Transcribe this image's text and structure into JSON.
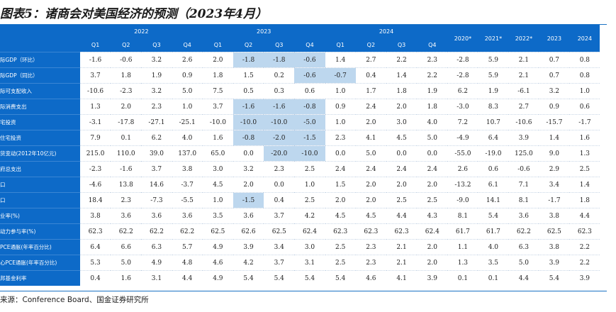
{
  "title": "图表5：诸商会对美国经济的预测（2023年4月）",
  "header": {
    "years": [
      {
        "label": "2022",
        "span": 4
      },
      {
        "label": "2023",
        "span": 4
      },
      {
        "label": "2024",
        "span": 4
      }
    ],
    "quarters": [
      "Q1",
      "Q2",
      "Q3",
      "Q4",
      "Q1",
      "Q2",
      "Q3",
      "Q4",
      "Q1",
      "Q2",
      "Q3",
      "Q4"
    ],
    "annual": [
      "2020*",
      "2021*",
      "2022*",
      "2023",
      "2024"
    ]
  },
  "rows": [
    {
      "label": "际GDP（环比）",
      "values": [
        "-1.6",
        "-0.6",
        "3.2",
        "2.6",
        "2.0",
        "-1.8",
        "-1.8",
        "-0.6",
        "1.4",
        "2.7",
        "2.2",
        "2.3",
        "-2.8",
        "5.9",
        "2.1",
        "0.7",
        "0.8"
      ],
      "highlight": [
        5,
        6,
        7
      ]
    },
    {
      "label": "际GDP（同比）",
      "values": [
        "3.7",
        "1.8",
        "1.9",
        "0.9",
        "1.8",
        "1.5",
        "0.2",
        "-0.6",
        "-0.7",
        "0.4",
        "1.4",
        "2.2",
        "-2.8",
        "5.9",
        "2.1",
        "0.7",
        "0.8"
      ],
      "highlight": [
        7,
        8
      ]
    },
    {
      "label": "际可支配收入",
      "values": [
        "-10.6",
        "-2.3",
        "3.2",
        "5.0",
        "7.5",
        "0.5",
        "0.3",
        "0.6",
        "1.0",
        "1.7",
        "1.8",
        "1.9",
        "6.2",
        "1.9",
        "-6.1",
        "3.2",
        "1.0"
      ],
      "highlight": []
    },
    {
      "label": "际消费支出",
      "values": [
        "1.3",
        "2.0",
        "2.3",
        "1.0",
        "3.7",
        "-1.6",
        "-1.6",
        "-0.8",
        "0.9",
        "2.4",
        "2.0",
        "1.8",
        "-3.0",
        "8.3",
        "2.7",
        "0.9",
        "0.6"
      ],
      "highlight": [
        5,
        6,
        7
      ]
    },
    {
      "label": "宅投资",
      "values": [
        "-3.1",
        "-17.8",
        "-27.1",
        "-25.1",
        "-10.0",
        "-10.0",
        "-10.0",
        "-5.0",
        "1.0",
        "2.0",
        "3.0",
        "4.0",
        "7.2",
        "10.7",
        "-10.6",
        "-15.7",
        "-1.7"
      ],
      "highlight": [
        5,
        6,
        7
      ]
    },
    {
      "label": "住宅投资",
      "values": [
        "7.9",
        "0.1",
        "6.2",
        "4.0",
        "1.6",
        "-0.8",
        "-2.0",
        "-1.5",
        "2.3",
        "4.1",
        "4.5",
        "5.0",
        "-4.9",
        "6.4",
        "3.9",
        "1.4",
        "1.6"
      ],
      "highlight": [
        5,
        6,
        7
      ]
    },
    {
      "label": "货变动(2012年10亿元)",
      "values": [
        "215.0",
        "110.0",
        "39.0",
        "137.0",
        "65.0",
        "0.0",
        "-20.0",
        "-10.0",
        "0.0",
        "5.0",
        "0.0",
        "0.0",
        "-55.0",
        "-19.0",
        "125.0",
        "9.0",
        "1.3"
      ],
      "highlight": [
        6,
        7
      ]
    },
    {
      "label": "府总支出",
      "values": [
        "-2.3",
        "-1.6",
        "3.7",
        "3.8",
        "3.0",
        "3.2",
        "2.3",
        "2.5",
        "2.4",
        "2.4",
        "2.4",
        "2.4",
        "2.6",
        "0.6",
        "-0.6",
        "2.9",
        "2.5"
      ],
      "highlight": []
    },
    {
      "label": "口",
      "values": [
        "-4.6",
        "13.8",
        "14.6",
        "-3.7",
        "4.5",
        "2.0",
        "0.0",
        "1.0",
        "1.5",
        "2.0",
        "2.0",
        "2.0",
        "-13.2",
        "6.1",
        "7.1",
        "3.4",
        "1.4"
      ],
      "highlight": []
    },
    {
      "label": "口",
      "values": [
        "18.4",
        "2.3",
        "-7.3",
        "-5.5",
        "1.0",
        "-1.5",
        "0.4",
        "2.5",
        "2.0",
        "2.0",
        "2.5",
        "2.5",
        "-9.0",
        "14.1",
        "8.1",
        "-1.7",
        "1.8"
      ],
      "highlight": [
        5
      ]
    },
    {
      "label": "业率(%)",
      "values": [
        "3.8",
        "3.6",
        "3.6",
        "3.6",
        "3.5",
        "3.6",
        "3.7",
        "4.2",
        "4.5",
        "4.5",
        "4.4",
        "4.3",
        "8.1",
        "5.4",
        "3.6",
        "3.8",
        "4.4"
      ],
      "highlight": []
    },
    {
      "label": "动力参与率(%)",
      "values": [
        "62.3",
        "62.2",
        "62.2",
        "62.2",
        "62.5",
        "62.6",
        "62.5",
        "62.4",
        "62.3",
        "62.3",
        "62.3",
        "62.4",
        "61.7",
        "61.7",
        "62.2",
        "62.5",
        "62.3"
      ],
      "highlight": []
    },
    {
      "label": "PCE通胀(年率百分比)",
      "values": [
        "6.4",
        "6.6",
        "6.3",
        "5.7",
        "4.9",
        "3.9",
        "3.4",
        "3.0",
        "2.5",
        "2.3",
        "2.1",
        "2.0",
        "1.1",
        "4.0",
        "6.3",
        "3.8",
        "2.2"
      ],
      "highlight": []
    },
    {
      "label": "心PCE通胀(年率百分比)",
      "values": [
        "5.3",
        "5.0",
        "4.9",
        "4.8",
        "4.6",
        "4.2",
        "3.7",
        "3.1",
        "2.5",
        "2.3",
        "2.1",
        "2.0",
        "1.3",
        "3.5",
        "5.0",
        "3.9",
        "2.2"
      ],
      "highlight": []
    },
    {
      "label": "邦基金利率",
      "values": [
        "0.4",
        "1.6",
        "3.1",
        "4.4",
        "4.9",
        "5.4",
        "5.4",
        "5.4",
        "5.4",
        "4.6",
        "4.1",
        "3.9",
        "0.1",
        "0.1",
        "4.4",
        "5.4",
        "3.9"
      ],
      "highlight": []
    }
  ],
  "source": "来源：Conference Board、国金证券研究所"
}
